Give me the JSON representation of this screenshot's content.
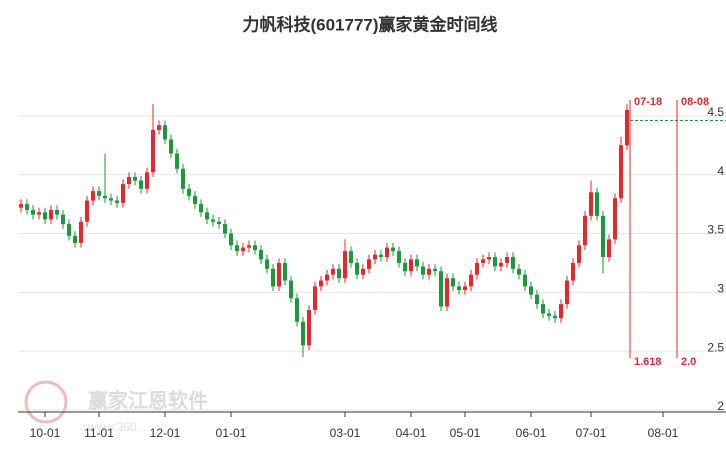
{
  "chart_data": {
    "type": "candlestick",
    "title": "力帆科技(601777)赢家黄金时间线",
    "watermark": "赢家江恩软件",
    "watermark_url": "www.360...",
    "categories": [
      null,
      null,
      null,
      null,
      "10-01",
      null,
      null,
      null,
      null,
      null,
      null,
      null,
      null,
      "11-01",
      null,
      null,
      null,
      null,
      null,
      null,
      null,
      null,
      null,
      null,
      "12-01",
      null,
      null,
      null,
      null,
      null,
      null,
      null,
      null,
      null,
      null,
      "01-01",
      null,
      null,
      null,
      null,
      null,
      null,
      null,
      null,
      null,
      null,
      null,
      null,
      null,
      null,
      null,
      null,
      null,
      null,
      "03-01",
      null,
      null,
      null,
      null,
      null,
      null,
      null,
      null,
      null,
      null,
      "04-01",
      null,
      null,
      null,
      null,
      null,
      null,
      null,
      null,
      "05-01",
      null,
      null,
      null,
      null,
      null,
      null,
      null,
      null,
      null,
      null,
      "06-01",
      null,
      null,
      null,
      null,
      null,
      null,
      null,
      null,
      null,
      "07-01",
      null,
      null,
      null,
      null,
      null,
      null,
      null,
      null,
      null,
      null,
      null,
      "08-01",
      null,
      null,
      null,
      null,
      null,
      null,
      null,
      null,
      null
    ],
    "open": [
      3.72,
      3.75,
      3.7,
      3.66,
      3.68,
      3.62,
      3.7,
      3.66,
      3.58,
      3.48,
      3.42,
      3.6,
      3.78,
      3.86,
      3.82,
      3.8,
      3.78,
      3.76,
      3.92,
      3.98,
      3.95,
      3.88,
      4.02,
      4.38,
      4.42,
      4.3,
      4.18,
      4.05,
      3.88,
      3.82,
      3.75,
      3.68,
      3.62,
      3.6,
      3.58,
      3.5,
      3.4,
      3.35,
      3.38,
      3.4,
      3.36,
      3.28,
      3.2,
      3.05,
      3.25,
      3.1,
      2.95,
      2.75,
      2.55,
      2.85,
      3.05,
      3.1,
      3.15,
      3.2,
      3.12,
      3.35,
      3.25,
      3.15,
      3.2,
      3.28,
      3.32,
      3.3,
      3.38,
      3.35,
      3.25,
      3.18,
      3.28,
      3.22,
      3.15,
      3.2,
      3.18,
      2.88,
      3.12,
      3.05,
      3.02,
      3.05,
      3.15,
      3.25,
      3.28,
      3.3,
      3.22,
      3.25,
      3.3,
      3.2,
      3.15,
      3.05,
      2.98,
      2.9,
      2.82,
      2.8,
      2.78,
      2.9,
      3.1,
      3.25,
      3.4,
      3.65,
      3.85,
      3.65,
      3.3,
      3.45,
      3.8,
      4.25,
      null,
      null,
      null,
      null,
      null,
      null,
      null,
      null,
      null,
      null,
      null,
      null,
      null,
      null,
      null
    ],
    "high": [
      3.79,
      3.79,
      3.74,
      3.72,
      3.72,
      3.74,
      3.74,
      3.7,
      3.62,
      3.52,
      3.64,
      3.82,
      3.9,
      3.9,
      4.18,
      3.84,
      3.82,
      3.96,
      4.02,
      4.02,
      3.99,
      4.06,
      4.6,
      4.46,
      4.46,
      4.34,
      4.22,
      4.09,
      3.92,
      3.86,
      3.79,
      3.72,
      3.66,
      3.64,
      3.62,
      3.54,
      3.44,
      3.42,
      3.44,
      3.44,
      3.4,
      3.32,
      3.24,
      3.29,
      3.29,
      3.14,
      2.99,
      2.79,
      2.89,
      3.09,
      3.14,
      3.19,
      3.24,
      3.24,
      3.45,
      3.39,
      3.29,
      3.24,
      3.32,
      3.36,
      3.36,
      3.42,
      3.42,
      3.39,
      3.29,
      3.32,
      3.32,
      3.26,
      3.24,
      3.24,
      3.22,
      3.16,
      3.16,
      3.09,
      3.09,
      3.19,
      3.29,
      3.32,
      3.34,
      3.34,
      3.29,
      3.34,
      3.34,
      3.24,
      3.19,
      3.09,
      3.02,
      2.94,
      2.86,
      2.84,
      2.94,
      3.14,
      3.29,
      3.44,
      3.69,
      3.95,
      3.89,
      3.69,
      3.49,
      3.84,
      4.32,
      4.6,
      null,
      null,
      null,
      null,
      null,
      null,
      null,
      null,
      null,
      null,
      null,
      null,
      null,
      null,
      null
    ],
    "low": [
      3.68,
      3.66,
      3.62,
      3.62,
      3.58,
      3.58,
      3.62,
      3.54,
      3.44,
      3.38,
      3.38,
      3.56,
      3.74,
      3.78,
      3.76,
      3.74,
      3.72,
      3.72,
      3.88,
      3.91,
      3.84,
      3.84,
      3.98,
      4.34,
      4.26,
      4.14,
      4.01,
      3.84,
      3.78,
      3.71,
      3.64,
      3.58,
      3.56,
      3.54,
      3.46,
      3.36,
      3.31,
      3.31,
      3.34,
      3.32,
      3.24,
      3.16,
      3.01,
      3.01,
      3.06,
      2.91,
      2.71,
      2.45,
      2.51,
      2.81,
      3.01,
      3.06,
      3.11,
      3.08,
      3.08,
      3.21,
      3.11,
      3.11,
      3.16,
      3.24,
      3.26,
      3.26,
      3.31,
      3.21,
      3.14,
      3.14,
      3.18,
      3.11,
      3.11,
      3.14,
      2.84,
      2.84,
      3.01,
      2.98,
      2.98,
      3.01,
      3.11,
      3.21,
      3.24,
      3.18,
      3.18,
      3.21,
      3.16,
      3.11,
      3.01,
      2.94,
      2.86,
      2.78,
      2.76,
      2.74,
      2.74,
      2.86,
      3.06,
      3.21,
      3.36,
      3.61,
      3.61,
      3.16,
      3.26,
      3.41,
      3.76,
      4.21,
      null,
      null,
      null,
      null,
      null,
      null,
      null,
      null,
      null,
      null,
      null,
      null,
      null,
      null,
      null
    ],
    "close": [
      3.75,
      3.7,
      3.66,
      3.68,
      3.62,
      3.7,
      3.66,
      3.58,
      3.48,
      3.42,
      3.6,
      3.78,
      3.86,
      3.82,
      3.8,
      3.78,
      3.76,
      3.92,
      3.98,
      3.95,
      3.88,
      4.02,
      4.38,
      4.42,
      4.3,
      4.18,
      4.05,
      3.88,
      3.82,
      3.75,
      3.68,
      3.62,
      3.6,
      3.58,
      3.5,
      3.4,
      3.35,
      3.38,
      3.4,
      3.36,
      3.28,
      3.2,
      3.05,
      3.25,
      3.1,
      2.95,
      2.75,
      2.55,
      2.85,
      3.05,
      3.1,
      3.15,
      3.2,
      3.12,
      3.35,
      3.25,
      3.15,
      3.2,
      3.28,
      3.32,
      3.3,
      3.38,
      3.35,
      3.25,
      3.18,
      3.28,
      3.22,
      3.15,
      3.2,
      3.18,
      2.88,
      3.12,
      3.05,
      3.02,
      3.05,
      3.15,
      3.25,
      3.28,
      3.3,
      3.22,
      3.25,
      3.3,
      3.2,
      3.15,
      3.05,
      2.98,
      2.9,
      2.82,
      2.8,
      2.78,
      2.9,
      3.1,
      3.25,
      3.4,
      3.65,
      3.85,
      3.65,
      3.3,
      3.45,
      3.8,
      4.25,
      4.55,
      null,
      null,
      null,
      null,
      null,
      null,
      null,
      null,
      null,
      null,
      null,
      null,
      null,
      null,
      null
    ],
    "up_color": "#e8262b",
    "down_color": "#1a9a3a",
    "ylim": [
      2,
      5
    ],
    "yticks": [
      2,
      2.5,
      3,
      3.5,
      4,
      4.5
    ],
    "grid": true,
    "time_lines": [
      {
        "date": "07-18",
        "ratio": "1.618"
      },
      {
        "date": "08-08",
        "ratio": "2.0"
      }
    ],
    "time_line_color": "#e8262b",
    "level_line": 4.46,
    "level_line_color": "#1a9a3a"
  }
}
